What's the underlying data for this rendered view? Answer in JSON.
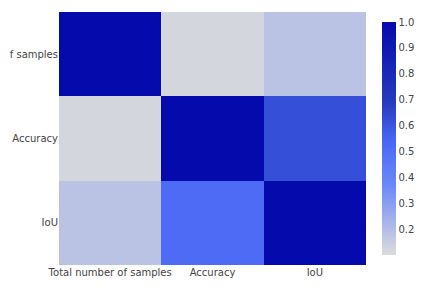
{
  "chart_data": {
    "type": "heatmap",
    "xlabels": [
      "Total number of samples",
      "Accuracy",
      "IoU"
    ],
    "ylabels": [
      "f samples",
      "Accuracy",
      "IoU"
    ],
    "cells": [
      [
        1.0,
        0.12,
        0.18
      ],
      [
        0.12,
        1.0,
        0.62
      ],
      [
        0.18,
        0.52,
        1.0
      ]
    ],
    "colorbar_range": [
      0.1,
      1.0
    ],
    "colorbar_ticks": [
      0.2,
      0.3,
      0.4,
      0.5,
      0.6,
      0.7,
      0.8,
      0.9,
      {
        "value": 1,
        "label": "1.0"
      }
    ],
    "grid": false
  }
}
